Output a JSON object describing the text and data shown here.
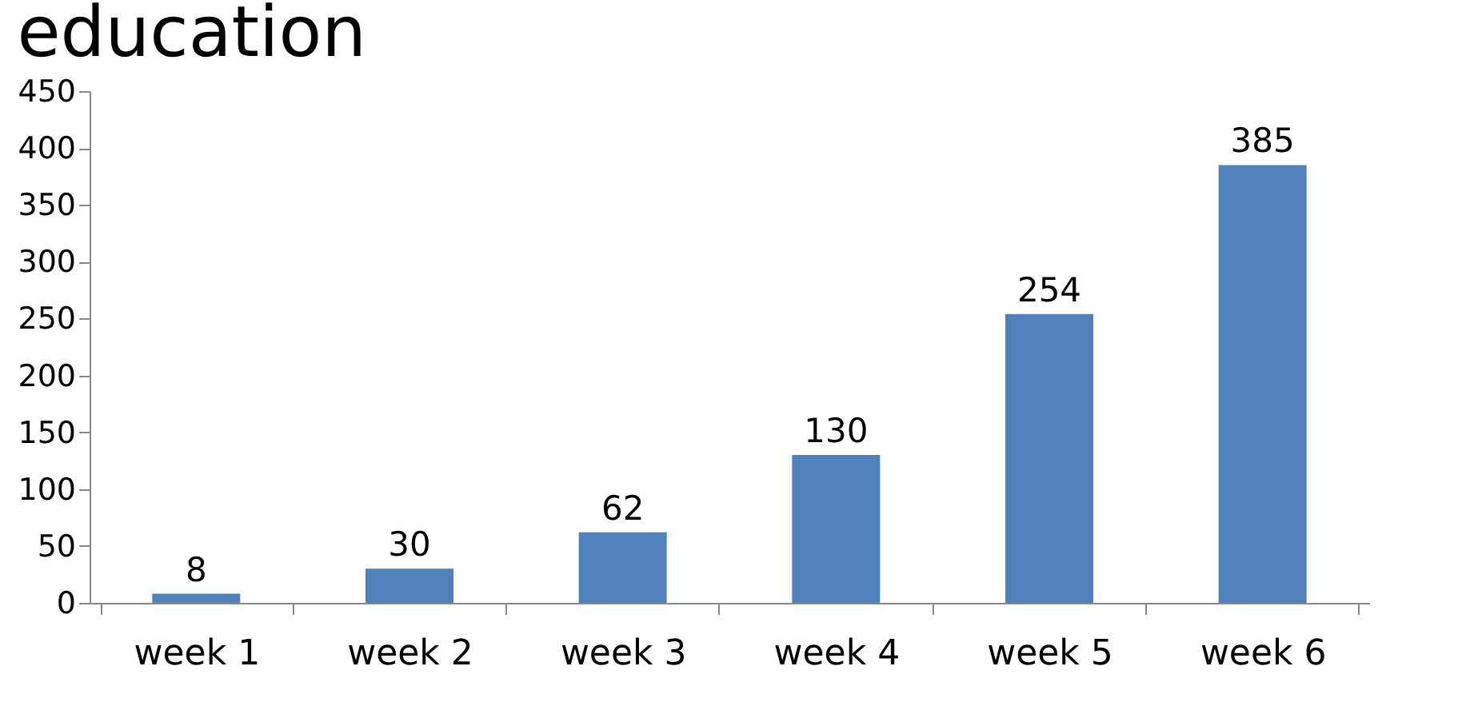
{
  "chart_data": {
    "type": "bar",
    "title": "education",
    "categories": [
      "week 1",
      "week 2",
      "week 3",
      "week 4",
      "week 5",
      "week 6"
    ],
    "values": [
      8,
      30,
      62,
      130,
      254,
      385
    ],
    "color": "#4f81bd",
    "ylim": [
      0,
      450
    ],
    "yticks": [
      0,
      50,
      100,
      150,
      200,
      250,
      300,
      350,
      400,
      450
    ],
    "data_labels": true,
    "grid": false
  }
}
